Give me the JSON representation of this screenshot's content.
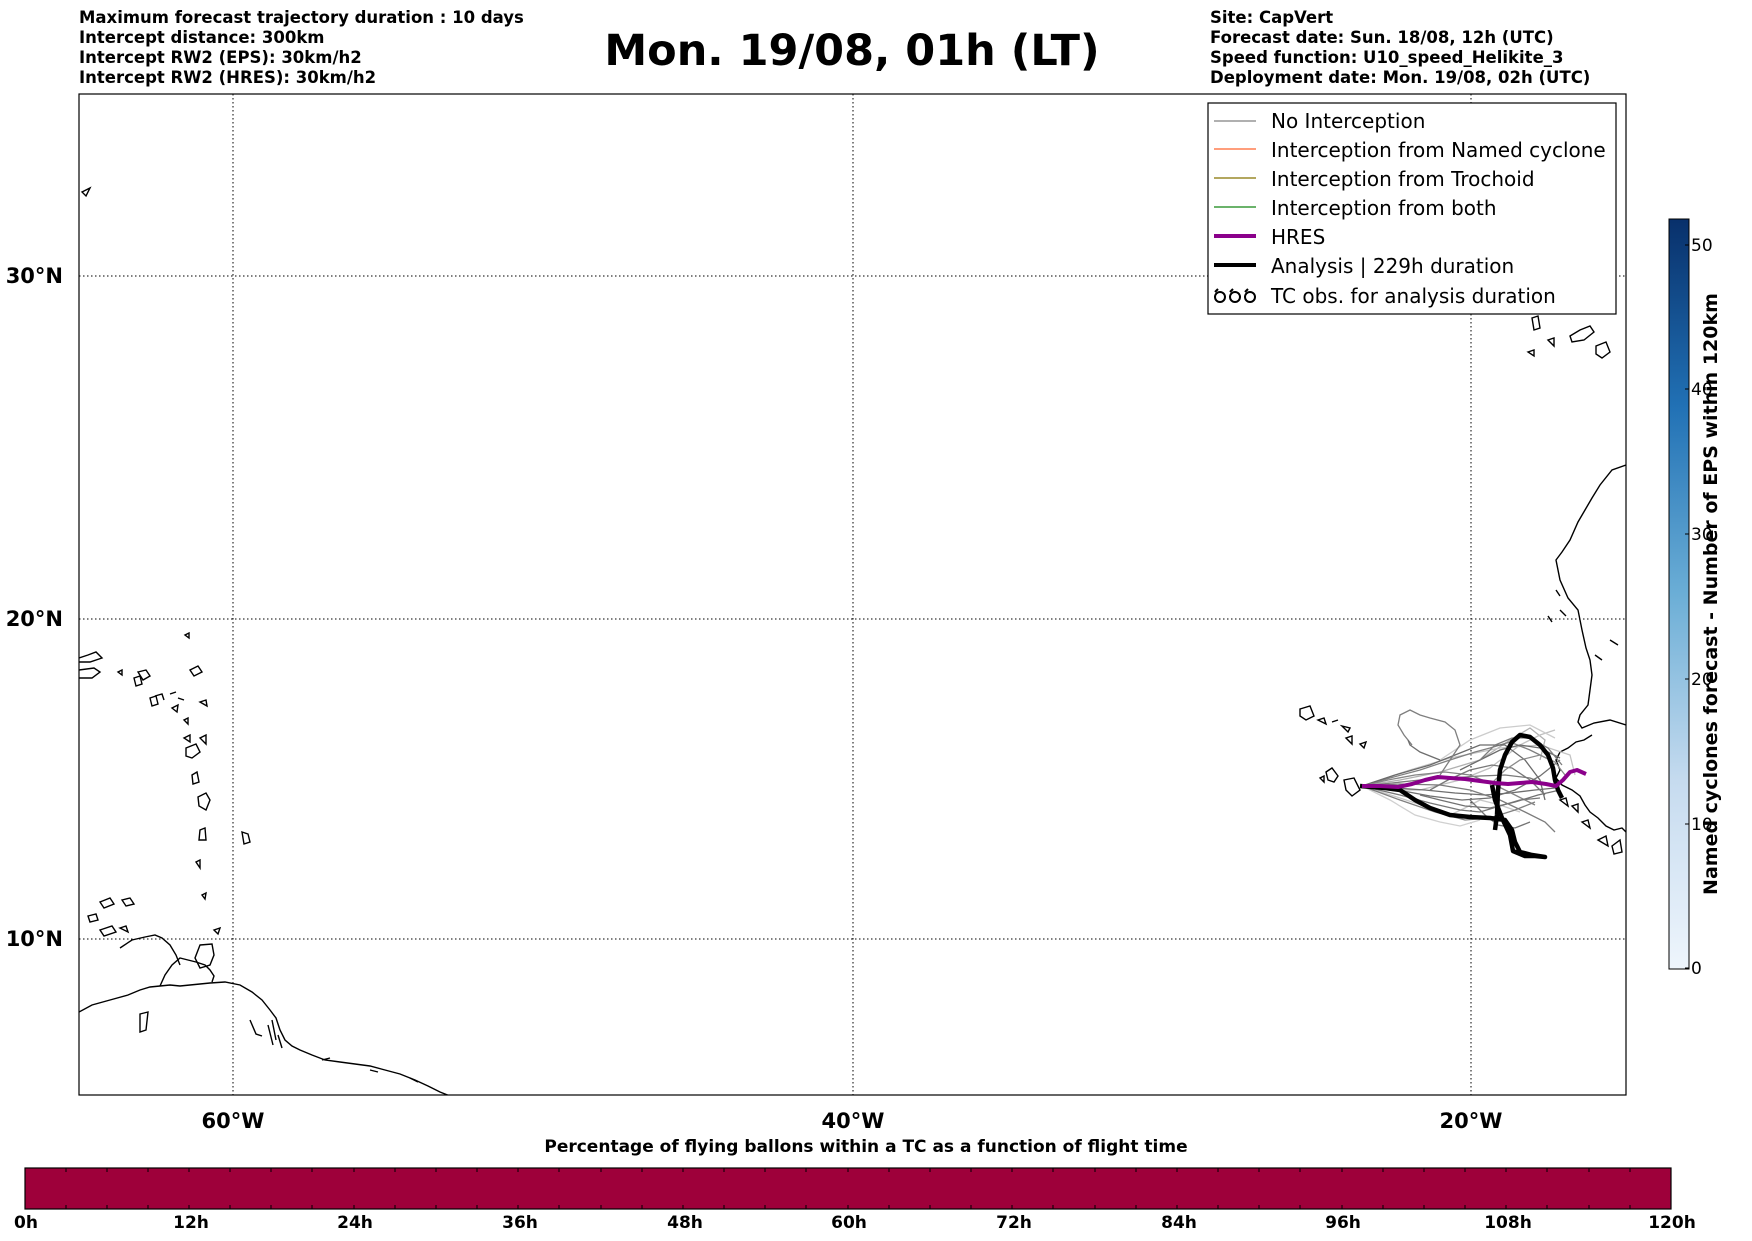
{
  "header": {
    "left_lines": [
      "Maximum forecast trajectory duration : 10 days",
      "Intercept distance: 300km",
      "Intercept RW2 (EPS):  30km/h2",
      "Intercept RW2 (HRES): 30km/h2"
    ],
    "right_lines": [
      "Site: CapVert",
      "Forecast date: Sun. 18/08, 12h (UTC)",
      "Speed function: U10_speed_Helikite_3",
      "Deployment date: Mon. 19/08, 02h (UTC)"
    ],
    "title": "Mon. 19/08, 01h (LT)"
  },
  "map": {
    "lat_labels": [
      "30°N",
      "20°N",
      "10°N"
    ],
    "lon_labels": [
      "60°W",
      "40°W",
      "20°W"
    ],
    "lon_range": [
      -65,
      -15
    ],
    "lat_range": [
      5.3,
      34.6
    ],
    "gridlines": true
  },
  "legend": {
    "items": [
      {
        "label": "No Interception",
        "color": "#808080",
        "style": "thin-line"
      },
      {
        "label": "Interception from Named cyclone",
        "color": "#ff7f50",
        "style": "thin-line"
      },
      {
        "label": "Interception from Trochoid",
        "color": "#9a8a2a",
        "style": "thin-line"
      },
      {
        "label": "Interception from both",
        "color": "#3a9a3a",
        "style": "thin-line"
      },
      {
        "label": "HRES",
        "color": "#8b008b",
        "style": "thick-line"
      },
      {
        "label": "Analysis | 229h duration",
        "color": "#000000",
        "style": "thick-line"
      },
      {
        "label": "TC obs. for analysis duration",
        "color": "#000000",
        "style": "cyclone-symbols"
      }
    ]
  },
  "colorbar_vertical": {
    "title": "Named cyclones forecast - Number of EPS within 120km",
    "ticks": [
      "50",
      "40",
      "30",
      "20",
      "10",
      "0"
    ],
    "tick_values": [
      50,
      40,
      30,
      20,
      10,
      0
    ],
    "range": [
      0,
      52
    ],
    "color_top": "#08306b",
    "color_bottom": "#e8f1fa"
  },
  "colorbar_horizontal": {
    "title": "Percentage of flying ballons within a TC as a function of flight time",
    "ticks": [
      "0h",
      "12h",
      "24h",
      "36h",
      "48h",
      "60h",
      "72h",
      "84h",
      "96h",
      "108h",
      "120h"
    ],
    "fill_color": "#9e003a"
  },
  "colors": {
    "no_interception": "#808080",
    "hres": "#8b008b",
    "analysis": "#000000",
    "coast": "#000000"
  }
}
